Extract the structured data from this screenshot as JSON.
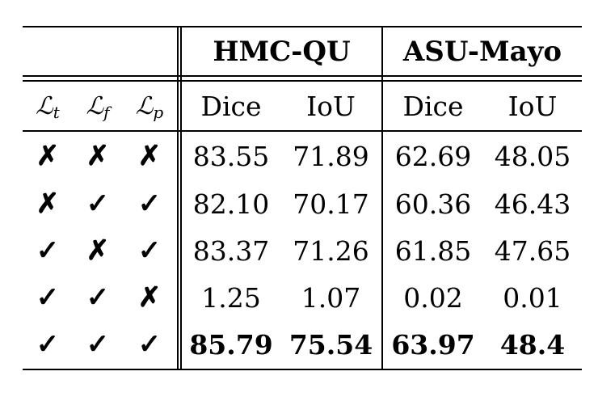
{
  "table": {
    "groups": [
      {
        "name": "HMC-QU"
      },
      {
        "name": "ASU-Mayo"
      }
    ],
    "loss_headers": [
      {
        "symbol": "ℒ",
        "sub": "t"
      },
      {
        "symbol": "ℒ",
        "sub": "f"
      },
      {
        "symbol": "ℒ",
        "sub": "p"
      }
    ],
    "metric_headers": [
      "Dice",
      "IoU",
      "Dice",
      "IoU"
    ],
    "rows": [
      {
        "losses": [
          "✗",
          "✗",
          "✗"
        ],
        "values": [
          "83.55",
          "71.89",
          "62.69",
          "48.05"
        ],
        "bold": false
      },
      {
        "losses": [
          "✗",
          "✓",
          "✓"
        ],
        "values": [
          "82.10",
          "70.17",
          "60.36",
          "46.43"
        ],
        "bold": false
      },
      {
        "losses": [
          "✓",
          "✗",
          "✓"
        ],
        "values": [
          "83.37",
          "71.26",
          "61.85",
          "47.65"
        ],
        "bold": false
      },
      {
        "losses": [
          "✓",
          "✓",
          "✗"
        ],
        "values": [
          "1.25",
          "1.07",
          "0.02",
          "0.01"
        ],
        "bold": false
      },
      {
        "losses": [
          "✓",
          "✓",
          "✓"
        ],
        "values": [
          "85.79",
          "75.54",
          "63.97",
          "48.4"
        ],
        "bold": true
      }
    ]
  }
}
